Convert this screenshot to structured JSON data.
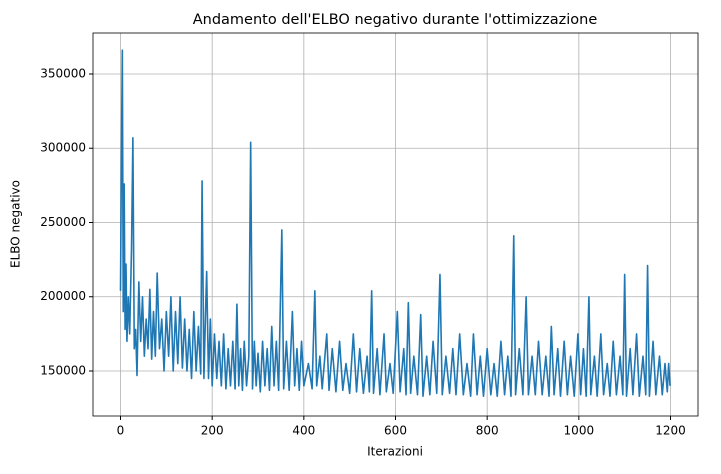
{
  "chart_data": {
    "type": "line",
    "title": "Andamento dell'ELBO negativo durante l'ottimizzazione",
    "x_label": "Iterazioni",
    "y_label": "ELBO negativo",
    "xlim": [
      -60,
      1260
    ],
    "ylim": [
      119700,
      377600
    ],
    "xticks": [
      0,
      200,
      400,
      600,
      800,
      1000,
      1200
    ],
    "yticks": [
      150000,
      200000,
      250000,
      300000,
      350000
    ],
    "grid": true,
    "x": [
      0,
      2,
      4,
      6,
      8,
      10,
      12,
      14,
      17,
      20,
      24,
      27,
      30,
      33,
      36,
      40,
      44,
      48,
      52,
      56,
      60,
      64,
      68,
      72,
      76,
      80,
      85,
      90,
      95,
      100,
      105,
      110,
      115,
      120,
      125,
      130,
      135,
      140,
      145,
      150,
      155,
      160,
      165,
      170,
      175,
      178,
      182,
      186,
      188,
      192,
      196,
      200,
      205,
      210,
      215,
      220,
      225,
      230,
      235,
      240,
      245,
      250,
      254,
      258,
      262,
      266,
      270,
      275,
      280,
      284,
      288,
      292,
      296,
      300,
      305,
      310,
      315,
      320,
      325,
      330,
      335,
      340,
      345,
      352,
      356,
      362,
      368,
      375,
      380,
      385,
      390,
      395,
      400,
      410,
      418,
      424,
      428,
      435,
      440,
      450,
      455,
      462,
      470,
      478,
      485,
      492,
      500,
      508,
      515,
      522,
      530,
      538,
      543,
      548,
      552,
      560,
      566,
      575,
      580,
      588,
      595,
      604,
      610,
      618,
      623,
      628,
      633,
      640,
      648,
      655,
      660,
      668,
      675,
      682,
      690,
      697,
      702,
      710,
      718,
      725,
      732,
      740,
      748,
      756,
      764,
      770,
      778,
      785,
      792,
      800,
      808,
      815,
      822,
      830,
      838,
      845,
      852,
      858,
      862,
      870,
      878,
      885,
      890,
      898,
      905,
      912,
      920,
      928,
      935,
      940,
      946,
      954,
      960,
      968,
      975,
      982,
      990,
      998,
      1004,
      1010,
      1016,
      1022,
      1026,
      1034,
      1040,
      1048,
      1054,
      1062,
      1068,
      1075,
      1082,
      1090,
      1096,
      1100,
      1104,
      1112,
      1118,
      1126,
      1132,
      1140,
      1146,
      1150,
      1154,
      1162,
      1168,
      1176,
      1182,
      1188,
      1193,
      1196,
      1199
    ],
    "series": [
      {
        "name": "ELBO negativo",
        "color": "#1f77b4",
        "values": [
          204000,
          296000,
          366000,
          190000,
          276000,
          178000,
          222000,
          170000,
          200000,
          175000,
          232000,
          307000,
          165000,
          178000,
          147000,
          210000,
          170000,
          200000,
          160000,
          185000,
          165000,
          205000,
          158000,
          190000,
          160000,
          216000,
          165000,
          185000,
          150000,
          190000,
          160000,
          200000,
          150000,
          190000,
          155000,
          200000,
          152000,
          185000,
          150000,
          178000,
          145000,
          190000,
          150000,
          180000,
          148000,
          278000,
          145000,
          195000,
          217000,
          145000,
          185000,
          140000,
          175000,
          145000,
          170000,
          140000,
          175000,
          138000,
          165000,
          140000,
          170000,
          138000,
          195000,
          140000,
          165000,
          137000,
          170000,
          140000,
          160000,
          304000,
          138000,
          170000,
          140000,
          162000,
          136000,
          170000,
          140000,
          165000,
          137000,
          180000,
          140000,
          170000,
          137000,
          245000,
          138000,
          170000,
          137000,
          190000,
          140000,
          165000,
          137000,
          170000,
          140000,
          155000,
          138000,
          204000,
          140000,
          160000,
          138000,
          175000,
          137000,
          165000,
          136000,
          170000,
          137000,
          155000,
          135000,
          175000,
          136000,
          165000,
          135000,
          160000,
          136000,
          204000,
          135000,
          165000,
          134000,
          175000,
          136000,
          155000,
          135000,
          190000,
          136000,
          165000,
          134000,
          196000,
          135000,
          160000,
          134000,
          188000,
          133000,
          160000,
          134000,
          170000,
          135000,
          215000,
          134000,
          160000,
          135000,
          165000,
          134000,
          175000,
          134000,
          155000,
          133000,
          175000,
          134000,
          160000,
          133000,
          165000,
          134000,
          155000,
          133000,
          170000,
          134000,
          160000,
          133000,
          241000,
          134000,
          165000,
          134000,
          200000,
          134000,
          160000,
          134000,
          170000,
          134000,
          160000,
          133000,
          180000,
          134000,
          165000,
          133000,
          170000,
          134000,
          160000,
          133000,
          175000,
          134000,
          165000,
          133000,
          200000,
          134000,
          160000,
          133000,
          175000,
          134000,
          155000,
          133000,
          170000,
          134000,
          160000,
          134000,
          215000,
          133000,
          165000,
          134000,
          175000,
          133000,
          160000,
          134000,
          221000,
          133000,
          170000,
          134000,
          160000,
          134000,
          155000,
          136000,
          155000,
          140000
        ]
      }
    ]
  }
}
